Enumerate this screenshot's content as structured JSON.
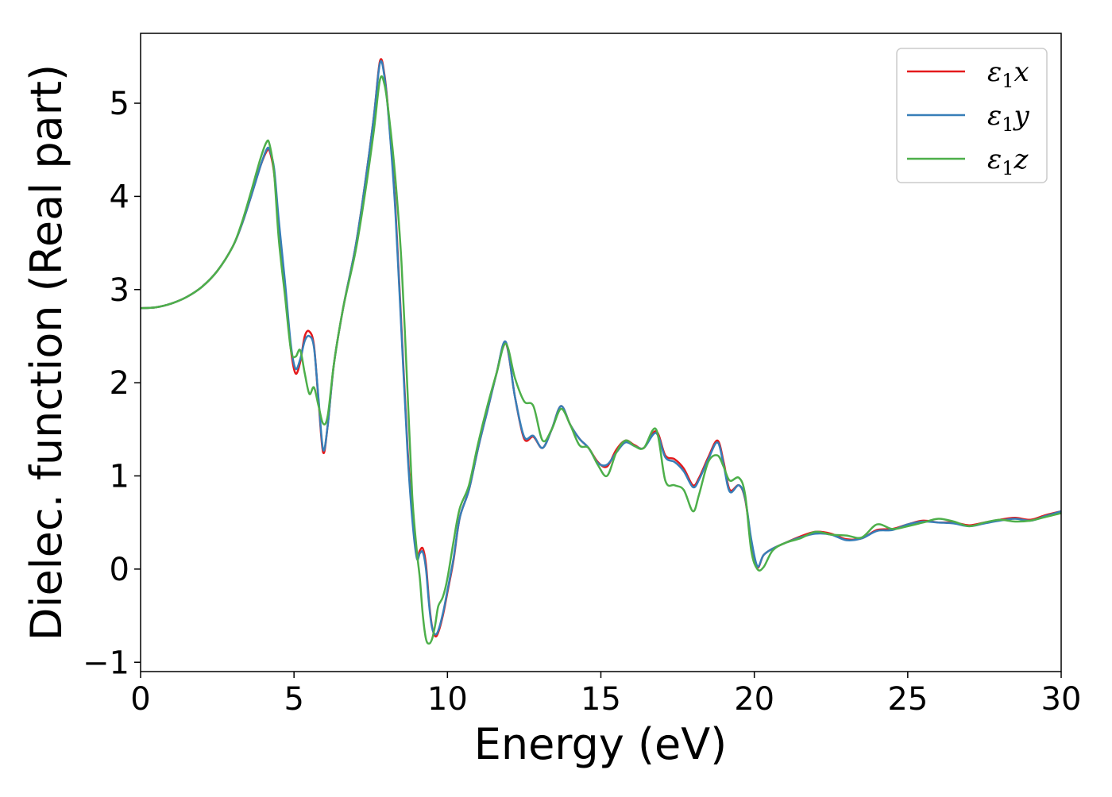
{
  "chart_data": {
    "type": "line",
    "title": "",
    "xlabel": "Energy (eV)",
    "ylabel": "Dielec. function (Real part)",
    "xlim": [
      0,
      30
    ],
    "ylim": [
      -1.1,
      5.75
    ],
    "xticks": [
      0,
      5,
      10,
      15,
      20,
      25,
      30
    ],
    "xtick_labels": [
      "0",
      "5",
      "10",
      "15",
      "20",
      "25",
      "30"
    ],
    "yticks": [
      -1,
      0,
      1,
      2,
      3,
      4,
      5
    ],
    "ytick_labels": [
      "−1",
      "0",
      "1",
      "2",
      "3",
      "4",
      "5"
    ],
    "grid": false,
    "legend_position": "top-right",
    "series": [
      {
        "name": "ε₁x",
        "legend_base": "ε",
        "legend_sub": "1",
        "legend_tail": "x",
        "color": "#e41a1c",
        "x": [
          0,
          0.5,
          1,
          1.5,
          2,
          2.5,
          3,
          3.3,
          3.6,
          3.9,
          4.1,
          4.2,
          4.35,
          4.5,
          4.7,
          4.9,
          5.05,
          5.2,
          5.35,
          5.5,
          5.65,
          5.8,
          5.95,
          6.1,
          6.3,
          6.6,
          7.0,
          7.3,
          7.6,
          7.8,
          7.95,
          8.1,
          8.3,
          8.5,
          8.7,
          8.85,
          9.0,
          9.1,
          9.2,
          9.3,
          9.4,
          9.5,
          9.6,
          9.7,
          9.85,
          10.0,
          10.2,
          10.4,
          10.7,
          11.0,
          11.3,
          11.6,
          11.9,
          12.2,
          12.5,
          12.8,
          13.1,
          13.4,
          13.7,
          14.0,
          14.3,
          14.6,
          14.9,
          15.2,
          15.5,
          15.8,
          16.1,
          16.4,
          16.8,
          17.1,
          17.4,
          17.7,
          18.0,
          18.2,
          18.5,
          18.8,
          19.0,
          19.2,
          19.5,
          19.7,
          19.9,
          20.1,
          20.3,
          20.6,
          21.0,
          21.5,
          22.0,
          22.5,
          23.0,
          23.5,
          24.0,
          24.5,
          25.0,
          25.5,
          26.0,
          26.5,
          27.0,
          27.5,
          28.0,
          28.5,
          29.0,
          29.5,
          30.0
        ],
        "y": [
          2.8,
          2.81,
          2.85,
          2.92,
          3.03,
          3.2,
          3.46,
          3.7,
          4.0,
          4.32,
          4.48,
          4.49,
          4.25,
          3.7,
          3.05,
          2.35,
          2.1,
          2.22,
          2.5,
          2.55,
          2.4,
          1.8,
          1.25,
          1.55,
          2.2,
          2.8,
          3.45,
          4.1,
          4.85,
          5.45,
          5.3,
          4.8,
          3.9,
          2.6,
          1.3,
          0.6,
          0.15,
          0.2,
          0.22,
          0.05,
          -0.35,
          -0.62,
          -0.72,
          -0.68,
          -0.5,
          -0.25,
          0.1,
          0.55,
          0.85,
          1.3,
          1.7,
          2.1,
          2.43,
          1.85,
          1.4,
          1.42,
          1.3,
          1.5,
          1.75,
          1.55,
          1.4,
          1.3,
          1.15,
          1.1,
          1.28,
          1.38,
          1.33,
          1.3,
          1.48,
          1.22,
          1.18,
          1.08,
          0.9,
          0.98,
          1.2,
          1.38,
          1.15,
          0.85,
          0.9,
          0.75,
          0.3,
          0.02,
          0.15,
          0.22,
          0.28,
          0.35,
          0.4,
          0.38,
          0.32,
          0.33,
          0.42,
          0.43,
          0.48,
          0.52,
          0.5,
          0.5,
          0.47,
          0.5,
          0.53,
          0.55,
          0.53,
          0.58,
          0.62
        ]
      },
      {
        "name": "ε₁y",
        "legend_base": "ε",
        "legend_sub": "1",
        "legend_tail": "y",
        "color": "#377eb8",
        "x": [
          0,
          0.5,
          1,
          1.5,
          2,
          2.5,
          3,
          3.3,
          3.6,
          3.9,
          4.1,
          4.2,
          4.35,
          4.5,
          4.7,
          4.9,
          5.05,
          5.2,
          5.35,
          5.5,
          5.65,
          5.8,
          5.95,
          6.1,
          6.3,
          6.6,
          7.0,
          7.3,
          7.6,
          7.8,
          7.95,
          8.1,
          8.3,
          8.5,
          8.7,
          8.85,
          9.0,
          9.1,
          9.2,
          9.3,
          9.4,
          9.5,
          9.6,
          9.7,
          9.85,
          10.0,
          10.2,
          10.4,
          10.7,
          11.0,
          11.3,
          11.6,
          11.9,
          12.2,
          12.5,
          12.8,
          13.1,
          13.4,
          13.7,
          14.0,
          14.3,
          14.6,
          14.9,
          15.2,
          15.5,
          15.8,
          16.1,
          16.4,
          16.8,
          17.1,
          17.4,
          17.7,
          18.0,
          18.2,
          18.5,
          18.8,
          19.0,
          19.2,
          19.5,
          19.7,
          19.9,
          20.1,
          20.3,
          20.6,
          21.0,
          21.5,
          22.0,
          22.5,
          23.0,
          23.5,
          24.0,
          24.5,
          25.0,
          25.5,
          26.0,
          26.5,
          27.0,
          27.5,
          28.0,
          28.5,
          29.0,
          29.5,
          30.0
        ],
        "y": [
          2.8,
          2.81,
          2.85,
          2.92,
          3.03,
          3.2,
          3.46,
          3.7,
          4.0,
          4.32,
          4.5,
          4.5,
          4.3,
          3.75,
          3.1,
          2.4,
          2.15,
          2.25,
          2.45,
          2.5,
          2.38,
          1.82,
          1.28,
          1.55,
          2.2,
          2.8,
          3.45,
          4.1,
          4.85,
          5.43,
          5.28,
          4.78,
          3.85,
          2.55,
          1.25,
          0.55,
          0.12,
          0.17,
          0.18,
          0.0,
          -0.38,
          -0.63,
          -0.7,
          -0.66,
          -0.48,
          -0.23,
          0.12,
          0.55,
          0.85,
          1.3,
          1.7,
          2.1,
          2.44,
          1.85,
          1.42,
          1.43,
          1.3,
          1.5,
          1.75,
          1.55,
          1.4,
          1.3,
          1.14,
          1.12,
          1.25,
          1.36,
          1.32,
          1.3,
          1.46,
          1.2,
          1.15,
          1.05,
          0.88,
          0.96,
          1.18,
          1.36,
          1.12,
          0.83,
          0.9,
          0.76,
          0.32,
          0.03,
          0.15,
          0.22,
          0.28,
          0.34,
          0.38,
          0.37,
          0.31,
          0.33,
          0.41,
          0.42,
          0.48,
          0.51,
          0.5,
          0.49,
          0.46,
          0.49,
          0.52,
          0.54,
          0.52,
          0.57,
          0.62
        ]
      },
      {
        "name": "ε₁z",
        "legend_base": "ε",
        "legend_sub": "1",
        "legend_tail": "z",
        "color": "#4daf4a",
        "x": [
          0,
          0.5,
          1,
          1.5,
          2,
          2.5,
          3,
          3.3,
          3.6,
          3.9,
          4.1,
          4.2,
          4.35,
          4.5,
          4.7,
          4.9,
          5.05,
          5.2,
          5.35,
          5.5,
          5.65,
          5.8,
          5.95,
          6.1,
          6.3,
          6.6,
          7.0,
          7.3,
          7.6,
          7.8,
          7.95,
          8.1,
          8.3,
          8.5,
          8.7,
          8.85,
          9.0,
          9.1,
          9.2,
          9.3,
          9.4,
          9.5,
          9.6,
          9.7,
          9.85,
          10.0,
          10.2,
          10.4,
          10.7,
          11.0,
          11.3,
          11.6,
          11.9,
          12.2,
          12.5,
          12.8,
          13.1,
          13.4,
          13.7,
          14.0,
          14.3,
          14.6,
          14.9,
          15.2,
          15.5,
          15.8,
          16.1,
          16.4,
          16.8,
          17.1,
          17.4,
          17.7,
          18.0,
          18.2,
          18.5,
          18.8,
          19.0,
          19.2,
          19.5,
          19.7,
          19.9,
          20.1,
          20.3,
          20.6,
          21.0,
          21.5,
          22.0,
          22.5,
          23.0,
          23.5,
          24.0,
          24.5,
          25.0,
          25.5,
          26.0,
          26.5,
          27.0,
          27.5,
          28.0,
          28.5,
          29.0,
          29.5,
          30.0
        ],
        "y": [
          2.8,
          2.81,
          2.85,
          2.92,
          3.03,
          3.2,
          3.46,
          3.72,
          4.05,
          4.4,
          4.58,
          4.56,
          4.25,
          3.55,
          2.95,
          2.35,
          2.28,
          2.35,
          2.1,
          1.88,
          1.95,
          1.75,
          1.56,
          1.65,
          2.2,
          2.8,
          3.4,
          4.0,
          4.7,
          5.25,
          5.2,
          4.85,
          4.2,
          3.3,
          1.9,
          0.8,
          0.2,
          -0.1,
          -0.5,
          -0.75,
          -0.8,
          -0.75,
          -0.6,
          -0.4,
          -0.3,
          -0.1,
          0.3,
          0.65,
          0.9,
          1.35,
          1.75,
          2.1,
          2.42,
          2.05,
          1.8,
          1.75,
          1.38,
          1.5,
          1.72,
          1.55,
          1.33,
          1.3,
          1.12,
          1.0,
          1.25,
          1.38,
          1.32,
          1.3,
          1.5,
          0.95,
          0.9,
          0.85,
          0.62,
          0.8,
          1.15,
          1.22,
          1.1,
          0.95,
          0.98,
          0.8,
          0.2,
          0.0,
          0.02,
          0.2,
          0.28,
          0.33,
          0.4,
          0.37,
          0.36,
          0.34,
          0.48,
          0.43,
          0.46,
          0.5,
          0.54,
          0.51,
          0.46,
          0.5,
          0.53,
          0.51,
          0.52,
          0.56,
          0.6
        ]
      }
    ]
  }
}
